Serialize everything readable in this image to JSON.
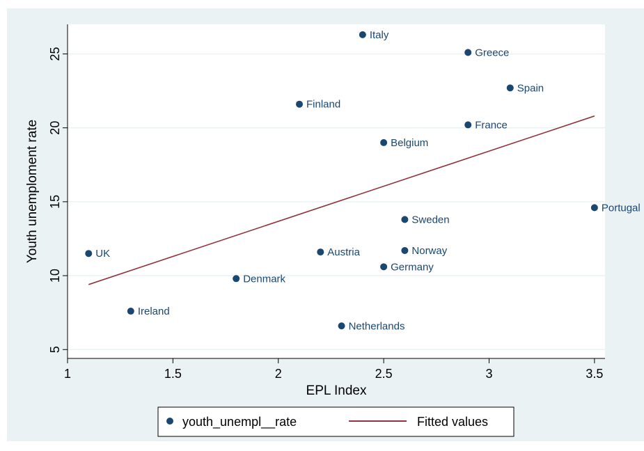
{
  "chart_data": {
    "type": "scatter",
    "xlabel": "EPL Index",
    "ylabel": "Youth unemploment rate",
    "xlim": [
      1,
      3.55
    ],
    "ylim": [
      4.4,
      27
    ],
    "x_ticks": [
      1,
      1.5,
      2,
      2.5,
      3,
      3.5
    ],
    "x_tick_labels": [
      "1",
      "1.5",
      "2",
      "2.5",
      "3",
      "3.5"
    ],
    "y_ticks": [
      5,
      10,
      15,
      20,
      25
    ],
    "y_tick_labels": [
      "5",
      "10",
      "15",
      "20",
      "25"
    ],
    "grid": true,
    "legend_position": "bottom",
    "series": [
      {
        "name": "youth_unempl__rate",
        "kind": "scatter",
        "color": "#1a476f",
        "points": [
          {
            "label": "UK",
            "x": 1.1,
            "y": 11.5
          },
          {
            "label": "Ireland",
            "x": 1.3,
            "y": 7.6
          },
          {
            "label": "Denmark",
            "x": 1.8,
            "y": 9.8
          },
          {
            "label": "Finland",
            "x": 2.1,
            "y": 21.6
          },
          {
            "label": "Austria",
            "x": 2.2,
            "y": 11.6
          },
          {
            "label": "Netherlands",
            "x": 2.3,
            "y": 6.6
          },
          {
            "label": "Italy",
            "x": 2.4,
            "y": 26.3
          },
          {
            "label": "Belgium",
            "x": 2.5,
            "y": 19.0
          },
          {
            "label": "Germany",
            "x": 2.5,
            "y": 10.6
          },
          {
            "label": "Sweden",
            "x": 2.6,
            "y": 13.8
          },
          {
            "label": "Norway",
            "x": 2.6,
            "y": 11.7
          },
          {
            "label": "Greece",
            "x": 2.9,
            "y": 25.1
          },
          {
            "label": "France",
            "x": 2.9,
            "y": 20.2
          },
          {
            "label": "Spain",
            "x": 3.1,
            "y": 22.7
          },
          {
            "label": "Portugal",
            "x": 3.5,
            "y": 14.6
          }
        ]
      },
      {
        "name": "Fitted values",
        "kind": "line",
        "color": "#90353b",
        "points": [
          {
            "x": 1.1,
            "y": 9.4
          },
          {
            "x": 3.5,
            "y": 20.8
          }
        ]
      }
    ]
  }
}
